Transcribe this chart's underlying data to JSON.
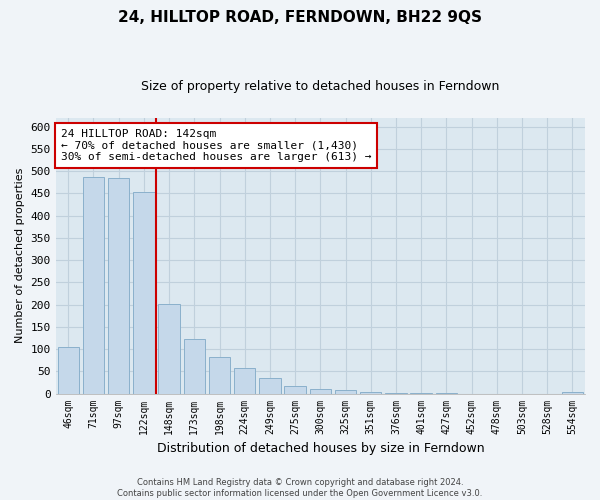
{
  "title": "24, HILLTOP ROAD, FERNDOWN, BH22 9QS",
  "subtitle": "Size of property relative to detached houses in Ferndown",
  "xlabel": "Distribution of detached houses by size in Ferndown",
  "ylabel": "Number of detached properties",
  "bar_labels": [
    "46sqm",
    "71sqm",
    "97sqm",
    "122sqm",
    "148sqm",
    "173sqm",
    "198sqm",
    "224sqm",
    "249sqm",
    "275sqm",
    "300sqm",
    "325sqm",
    "351sqm",
    "376sqm",
    "401sqm",
    "427sqm",
    "452sqm",
    "478sqm",
    "503sqm",
    "528sqm",
    "554sqm"
  ],
  "bar_values": [
    105,
    487,
    485,
    453,
    202,
    122,
    82,
    57,
    35,
    16,
    10,
    8,
    3,
    2,
    1,
    1,
    0,
    0,
    0,
    0,
    4
  ],
  "bar_color": "#c5d8ea",
  "bar_edge_color": "#8ab0cc",
  "vline_x_index": 4,
  "vline_color": "#cc0000",
  "annotation_title": "24 HILLTOP ROAD: 142sqm",
  "annotation_line1": "← 70% of detached houses are smaller (1,430)",
  "annotation_line2": "30% of semi-detached houses are larger (613) →",
  "annotation_box_facecolor": "#ffffff",
  "annotation_box_edgecolor": "#cc0000",
  "ylim": [
    0,
    620
  ],
  "yticks": [
    0,
    50,
    100,
    150,
    200,
    250,
    300,
    350,
    400,
    450,
    500,
    550,
    600
  ],
  "footer_line1": "Contains HM Land Registry data © Crown copyright and database right 2024.",
  "footer_line2": "Contains public sector information licensed under the Open Government Licence v3.0.",
  "fig_bg_color": "#f0f4f8",
  "plot_bg_color": "#dce8f0",
  "grid_color": "#c0d0dc",
  "title_fontsize": 11,
  "subtitle_fontsize": 9,
  "ylabel_fontsize": 8,
  "xlabel_fontsize": 9
}
